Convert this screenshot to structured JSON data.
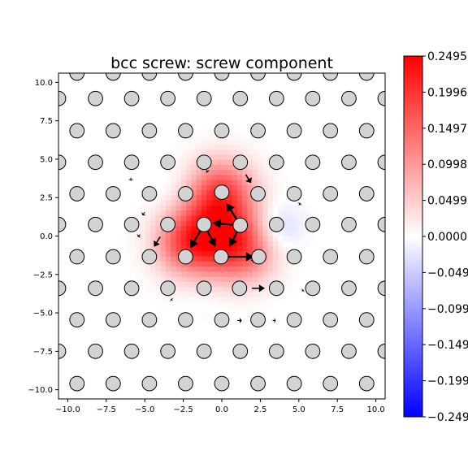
{
  "chart_data": {
    "type": "heatmap",
    "title": "bcc screw: screw component",
    "xlabel": "",
    "ylabel": "",
    "xlim": [
      -10.6,
      10.6
    ],
    "ylim": [
      -10.6,
      10.6
    ],
    "xticks": [
      -10.0,
      -7.5,
      -5.0,
      -2.5,
      0.0,
      2.5,
      5.0,
      7.5,
      10.0
    ],
    "xtick_labels": [
      "−10.0",
      "−7.5",
      "−5.0",
      "−2.5",
      "0.0",
      "2.5",
      "5.0",
      "7.5",
      "10.0"
    ],
    "yticks": [
      10.0,
      7.5,
      5.0,
      2.5,
      0.0,
      -2.5,
      -5.0,
      -7.5,
      -10.0
    ],
    "ytick_labels": [
      "10.0",
      "7.5",
      "5.0",
      "2.5",
      "0.0",
      "−2.5",
      "−5.0",
      "−7.5",
      "−10.0"
    ],
    "colorbar": {
      "colormap": "bwr",
      "range": [
        -0.2495,
        0.2495
      ],
      "ticks": [
        0.2495,
        0.1996,
        0.1497,
        0.0998,
        0.0499,
        0.0,
        -0.0499,
        -0.0998,
        -0.1497,
        -0.1996,
        -0.2495
      ],
      "tick_labels": [
        "0.2495",
        "0.1996",
        "0.1497",
        "0.0998",
        "0.0499",
        "0.0000",
        "−0.0499",
        "−0.0998",
        "−0.1497",
        "−0.1996",
        "−0.2495"
      ]
    },
    "atom_color": "#d3d3d3",
    "atoms": [
      {
        "x": -9.4,
        "y": 10.6
      },
      {
        "x": -7.05,
        "y": 10.6
      },
      {
        "x": -4.7,
        "y": 10.6
      },
      {
        "x": -2.35,
        "y": 10.6
      },
      {
        "x": 0.0,
        "y": 10.6
      },
      {
        "x": 2.35,
        "y": 10.6
      },
      {
        "x": 4.7,
        "y": 10.6
      },
      {
        "x": 7.05,
        "y": 10.6
      },
      {
        "x": 9.4,
        "y": 10.6
      },
      {
        "x": -10.6,
        "y": 8.95
      },
      {
        "x": -8.2,
        "y": 8.95
      },
      {
        "x": -5.85,
        "y": 8.95
      },
      {
        "x": -3.5,
        "y": 8.95
      },
      {
        "x": -1.15,
        "y": 8.95
      },
      {
        "x": 1.2,
        "y": 8.95
      },
      {
        "x": 3.55,
        "y": 8.95
      },
      {
        "x": 5.9,
        "y": 8.95
      },
      {
        "x": 8.25,
        "y": 8.95
      },
      {
        "x": 10.6,
        "y": 8.95
      },
      {
        "x": -9.4,
        "y": 6.85
      },
      {
        "x": -7.05,
        "y": 6.85
      },
      {
        "x": -4.7,
        "y": 6.85
      },
      {
        "x": -2.35,
        "y": 6.85
      },
      {
        "x": 0.0,
        "y": 6.85
      },
      {
        "x": 2.35,
        "y": 6.85
      },
      {
        "x": 4.7,
        "y": 6.85
      },
      {
        "x": 7.05,
        "y": 6.85
      },
      {
        "x": 9.4,
        "y": 6.85
      },
      {
        "x": -10.6,
        "y": 4.8
      },
      {
        "x": -8.2,
        "y": 4.8
      },
      {
        "x": -5.85,
        "y": 4.8
      },
      {
        "x": -3.5,
        "y": 4.8
      },
      {
        "x": -1.15,
        "y": 4.8
      },
      {
        "x": 1.2,
        "y": 4.8
      },
      {
        "x": 3.55,
        "y": 4.8
      },
      {
        "x": 5.9,
        "y": 4.8
      },
      {
        "x": 8.25,
        "y": 4.8
      },
      {
        "x": 10.6,
        "y": 4.8
      },
      {
        "x": -9.4,
        "y": 2.75
      },
      {
        "x": -7.05,
        "y": 2.75
      },
      {
        "x": -4.7,
        "y": 2.75
      },
      {
        "x": -2.35,
        "y": 2.75
      },
      {
        "x": 0.0,
        "y": 2.85
      },
      {
        "x": 2.35,
        "y": 2.75
      },
      {
        "x": 4.7,
        "y": 2.75
      },
      {
        "x": 7.05,
        "y": 2.75
      },
      {
        "x": 9.4,
        "y": 2.75
      },
      {
        "x": -10.6,
        "y": 0.75
      },
      {
        "x": -8.2,
        "y": 0.75
      },
      {
        "x": -5.85,
        "y": 0.75
      },
      {
        "x": -3.5,
        "y": 0.75
      },
      {
        "x": -1.15,
        "y": 0.75
      },
      {
        "x": 1.2,
        "y": 0.7
      },
      {
        "x": 3.55,
        "y": 0.75
      },
      {
        "x": 5.9,
        "y": 0.75
      },
      {
        "x": 8.25,
        "y": 0.75
      },
      {
        "x": 10.6,
        "y": 0.75
      },
      {
        "x": -9.4,
        "y": -1.35
      },
      {
        "x": -7.05,
        "y": -1.35
      },
      {
        "x": -4.7,
        "y": -1.35
      },
      {
        "x": -2.35,
        "y": -1.35
      },
      {
        "x": -0.05,
        "y": -1.35
      },
      {
        "x": 2.4,
        "y": -1.35
      },
      {
        "x": 4.7,
        "y": -1.35
      },
      {
        "x": 7.05,
        "y": -1.35
      },
      {
        "x": 9.4,
        "y": -1.35
      },
      {
        "x": -10.6,
        "y": -3.4
      },
      {
        "x": -8.2,
        "y": -3.4
      },
      {
        "x": -5.85,
        "y": -3.4
      },
      {
        "x": -3.5,
        "y": -3.4
      },
      {
        "x": -1.15,
        "y": -3.4
      },
      {
        "x": 1.15,
        "y": -3.4
      },
      {
        "x": 3.55,
        "y": -3.4
      },
      {
        "x": 5.9,
        "y": -3.4
      },
      {
        "x": 8.25,
        "y": -3.4
      },
      {
        "x": 10.6,
        "y": -3.4
      },
      {
        "x": -9.4,
        "y": -5.45
      },
      {
        "x": -7.05,
        "y": -5.45
      },
      {
        "x": -4.7,
        "y": -5.45
      },
      {
        "x": -2.35,
        "y": -5.45
      },
      {
        "x": 0.0,
        "y": -5.45
      },
      {
        "x": 2.35,
        "y": -5.45
      },
      {
        "x": 4.7,
        "y": -5.45
      },
      {
        "x": 7.05,
        "y": -5.45
      },
      {
        "x": 9.4,
        "y": -5.45
      },
      {
        "x": -10.6,
        "y": -7.5
      },
      {
        "x": -8.2,
        "y": -7.5
      },
      {
        "x": -5.85,
        "y": -7.5
      },
      {
        "x": -3.5,
        "y": -7.5
      },
      {
        "x": -1.15,
        "y": -7.5
      },
      {
        "x": 1.2,
        "y": -7.5
      },
      {
        "x": 3.55,
        "y": -7.5
      },
      {
        "x": 5.9,
        "y": -7.5
      },
      {
        "x": 8.25,
        "y": -7.5
      },
      {
        "x": 10.6,
        "y": -7.5
      },
      {
        "x": -9.4,
        "y": -9.6
      },
      {
        "x": -7.05,
        "y": -9.6
      },
      {
        "x": -4.7,
        "y": -9.6
      },
      {
        "x": -2.35,
        "y": -9.6
      },
      {
        "x": 0.0,
        "y": -9.6
      },
      {
        "x": 2.35,
        "y": -9.6
      },
      {
        "x": 4.7,
        "y": -9.6
      },
      {
        "x": 7.05,
        "y": -9.6
      },
      {
        "x": 9.4,
        "y": -9.6
      }
    ],
    "field_peaks": [
      {
        "x": -0.3,
        "y": 0.2,
        "value": 0.2495,
        "sigma": 1.9
      },
      {
        "x": 0.0,
        "y": 3.2,
        "value": 0.12,
        "sigma": 1.4
      },
      {
        "x": -2.6,
        "y": -0.6,
        "value": 0.09,
        "sigma": 1.3
      },
      {
        "x": 1.8,
        "y": -1.2,
        "value": 0.07,
        "sigma": 1.3
      },
      {
        "x": 3.6,
        "y": 0.6,
        "value": -0.05,
        "sigma": 1.1
      },
      {
        "x": -3.4,
        "y": 3.0,
        "value": -0.015,
        "sigma": 1.1
      },
      {
        "x": -1.0,
        "y": -4.2,
        "value": -0.012,
        "sigma": 1.1
      }
    ],
    "arrows": [
      {
        "x": 1.2,
        "y": 0.7,
        "dx": -1.8,
        "dy": 0.15,
        "w": 2.2
      },
      {
        "x": 1.2,
        "y": 0.7,
        "dx": -0.9,
        "dy": 1.45,
        "w": 2.2
      },
      {
        "x": 1.2,
        "y": 0.7,
        "dx": -0.7,
        "dy": -1.4,
        "w": 2.2
      },
      {
        "x": -1.15,
        "y": 0.75,
        "dx": 0.75,
        "dy": -1.45,
        "w": 2.2
      },
      {
        "x": -1.15,
        "y": 0.75,
        "dx": -0.9,
        "dy": -1.55,
        "w": 2.2
      },
      {
        "x": -0.05,
        "y": -1.35,
        "dx": 2.15,
        "dy": 0.0,
        "w": 2.2
      },
      {
        "x": 1.55,
        "y": 4.0,
        "dx": 0.35,
        "dy": -0.55,
        "w": 1.6
      },
      {
        "x": -4.0,
        "y": -0.05,
        "dx": -0.4,
        "dy": -0.65,
        "w": 1.6
      },
      {
        "x": 1.95,
        "y": -3.4,
        "dx": 0.85,
        "dy": 0.0,
        "w": 1.6
      },
      {
        "x": 1.0,
        "y": -5.5,
        "dx": 0.3,
        "dy": 0.0,
        "w": 1.0
      },
      {
        "x": 1.9,
        "y": -1.6,
        "dx": 0.2,
        "dy": 0.0,
        "w": 1.0
      },
      {
        "x": -5.0,
        "y": 1.55,
        "dx": -0.15,
        "dy": -0.2,
        "w": 1.0
      },
      {
        "x": -5.3,
        "y": 0.1,
        "dx": -0.15,
        "dy": -0.15,
        "w": 1.0
      },
      {
        "x": -1.0,
        "y": 4.3,
        "dx": 0.1,
        "dy": -0.15,
        "w": 1.0
      },
      {
        "x": 2.4,
        "y": 6.9,
        "dx": 0.25,
        "dy": 0.0,
        "w": 1.0
      },
      {
        "x": -5.9,
        "y": 3.8,
        "dx": 0.0,
        "dy": -0.2,
        "w": 1.0
      },
      {
        "x": 5.0,
        "y": 2.0,
        "dx": 0.1,
        "dy": 0.15,
        "w": 1.0
      },
      {
        "x": 3.3,
        "y": -5.5,
        "dx": 0.2,
        "dy": 0.0,
        "w": 1.0
      },
      {
        "x": 5.2,
        "y": -3.6,
        "dx": 0.1,
        "dy": 0.1,
        "w": 1.0
      },
      {
        "x": -3.2,
        "y": -4.2,
        "dx": -0.1,
        "dy": 0.1,
        "w": 1.0
      }
    ]
  }
}
